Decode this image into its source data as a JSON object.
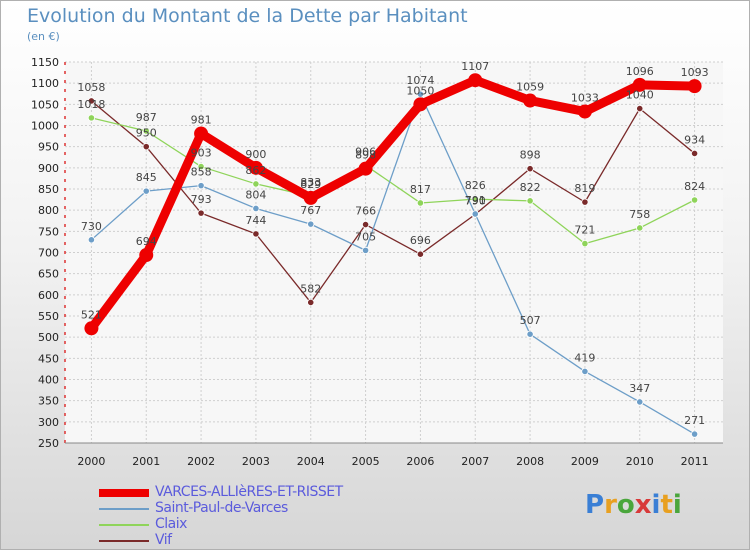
{
  "title": "Evolution du Montant de la Dette par Habitant",
  "unit": "(en €)",
  "logo": "Proxiti",
  "logo_colors": [
    "#3a7fd5",
    "#e8a020",
    "#4aa63c",
    "#d83a3a",
    "#3a7fd5",
    "#e8a020",
    "#4aa63c"
  ],
  "chart_data": {
    "type": "line",
    "categories": [
      "2000",
      "2001",
      "2002",
      "2003",
      "2004",
      "2005",
      "2006",
      "2007",
      "2008",
      "2009",
      "2010",
      "2011"
    ],
    "ylim": [
      250,
      1150
    ],
    "yticks": [
      "250",
      "300",
      "350",
      "400",
      "450",
      "500",
      "550",
      "600",
      "650",
      "700",
      "750",
      "800",
      "850",
      "900",
      "950",
      "1000",
      "1050",
      "1100",
      "1150"
    ],
    "grid": true,
    "legend_position": "bottom-left",
    "series": [
      {
        "name": "VARCES-ALLIèRES-ET-RISSET",
        "color": "#ee0000",
        "values": [
          521,
          694,
          981,
          900,
          829,
          898,
          1050,
          1107,
          1059,
          1033,
          1096,
          1093
        ]
      },
      {
        "name": "Saint-Paul-de-Varces",
        "color": "#6d9ec8",
        "values": [
          730,
          845,
          858,
          804,
          767,
          705,
          1074,
          791,
          507,
          419,
          347,
          271
        ]
      },
      {
        "name": "Claix",
        "color": "#8fd45a",
        "values": [
          1018,
          987,
          903,
          862,
          833,
          906,
          817,
          826,
          822,
          721,
          758,
          824
        ]
      },
      {
        "name": "Vif",
        "color": "#7a2a2a",
        "values": [
          1058,
          950,
          793,
          744,
          582,
          766,
          696,
          790,
          898,
          819,
          1040,
          934
        ]
      }
    ]
  }
}
